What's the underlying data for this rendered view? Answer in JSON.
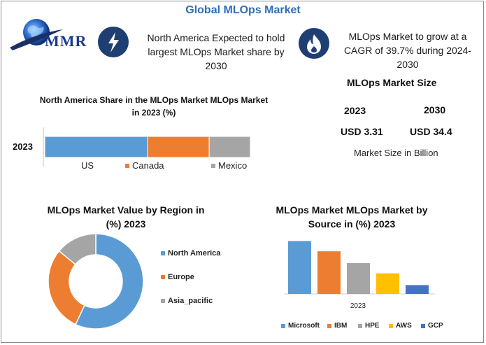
{
  "header": {
    "title": "Global MLOps Market",
    "logo_text": "MMR",
    "card1_text": "North America Expected to hold largest MLOps Market share by 2030",
    "card2_text": "MLOps Market to grow at a CAGR of 39.7% during 2024-2030",
    "card1_icon": "lightning-icon",
    "card2_icon": "flame-icon"
  },
  "market_size": {
    "title": "MLOps Market Size",
    "year1": "2023",
    "year2": "2030",
    "value1": "USD 3.31",
    "value2": "USD 34.4",
    "unit_note": "Market Size in Billion"
  },
  "colors": {
    "title_blue": "#2f6fb4",
    "icon_navy": "#1f3f73",
    "blue": "#5b9bd5",
    "orange": "#ed7d31",
    "gray": "#a5a5a5",
    "yellow": "#ffc000",
    "dark_blue": "#4472c4"
  },
  "chart_data": [
    {
      "type": "bar",
      "orientation": "horizontal-stacked",
      "title": "North America Share in the MLOps Market MLOps Market in 2023 (%)",
      "categories": [
        "2023"
      ],
      "series": [
        {
          "name": "US",
          "values": [
            50
          ],
          "color": "#5b9bd5"
        },
        {
          "name": "Canada",
          "values": [
            30
          ],
          "color": "#ed7d31"
        },
        {
          "name": "Mexico",
          "values": [
            20
          ],
          "color": "#a5a5a5"
        }
      ],
      "legend": "bottom"
    },
    {
      "type": "pie",
      "style": "donut",
      "title": "MLOps Market Value by Region in (%) 2023",
      "labels": [
        "North America",
        "Europe",
        "Asia_pacific"
      ],
      "values": [
        57,
        29,
        14
      ],
      "colors": [
        "#5b9bd5",
        "#ed7d31",
        "#a5a5a5"
      ],
      "legend": "right"
    },
    {
      "type": "bar",
      "title": "MLOps Market MLOps Market by Source in (%) 2023",
      "categories": [
        "2023"
      ],
      "xlabel": "2023",
      "series": [
        {
          "name": "Microsoft",
          "values": [
            36
          ],
          "color": "#5b9bd5"
        },
        {
          "name": "IBM",
          "values": [
            29
          ],
          "color": "#ed7d31"
        },
        {
          "name": "HPE",
          "values": [
            21
          ],
          "color": "#a5a5a5"
        },
        {
          "name": "AWS",
          "values": [
            14
          ],
          "color": "#ffc000"
        },
        {
          "name": "GCP",
          "values": [
            6
          ],
          "color": "#4472c4"
        }
      ],
      "ylim": [
        0,
        40
      ],
      "legend": "bottom"
    }
  ]
}
